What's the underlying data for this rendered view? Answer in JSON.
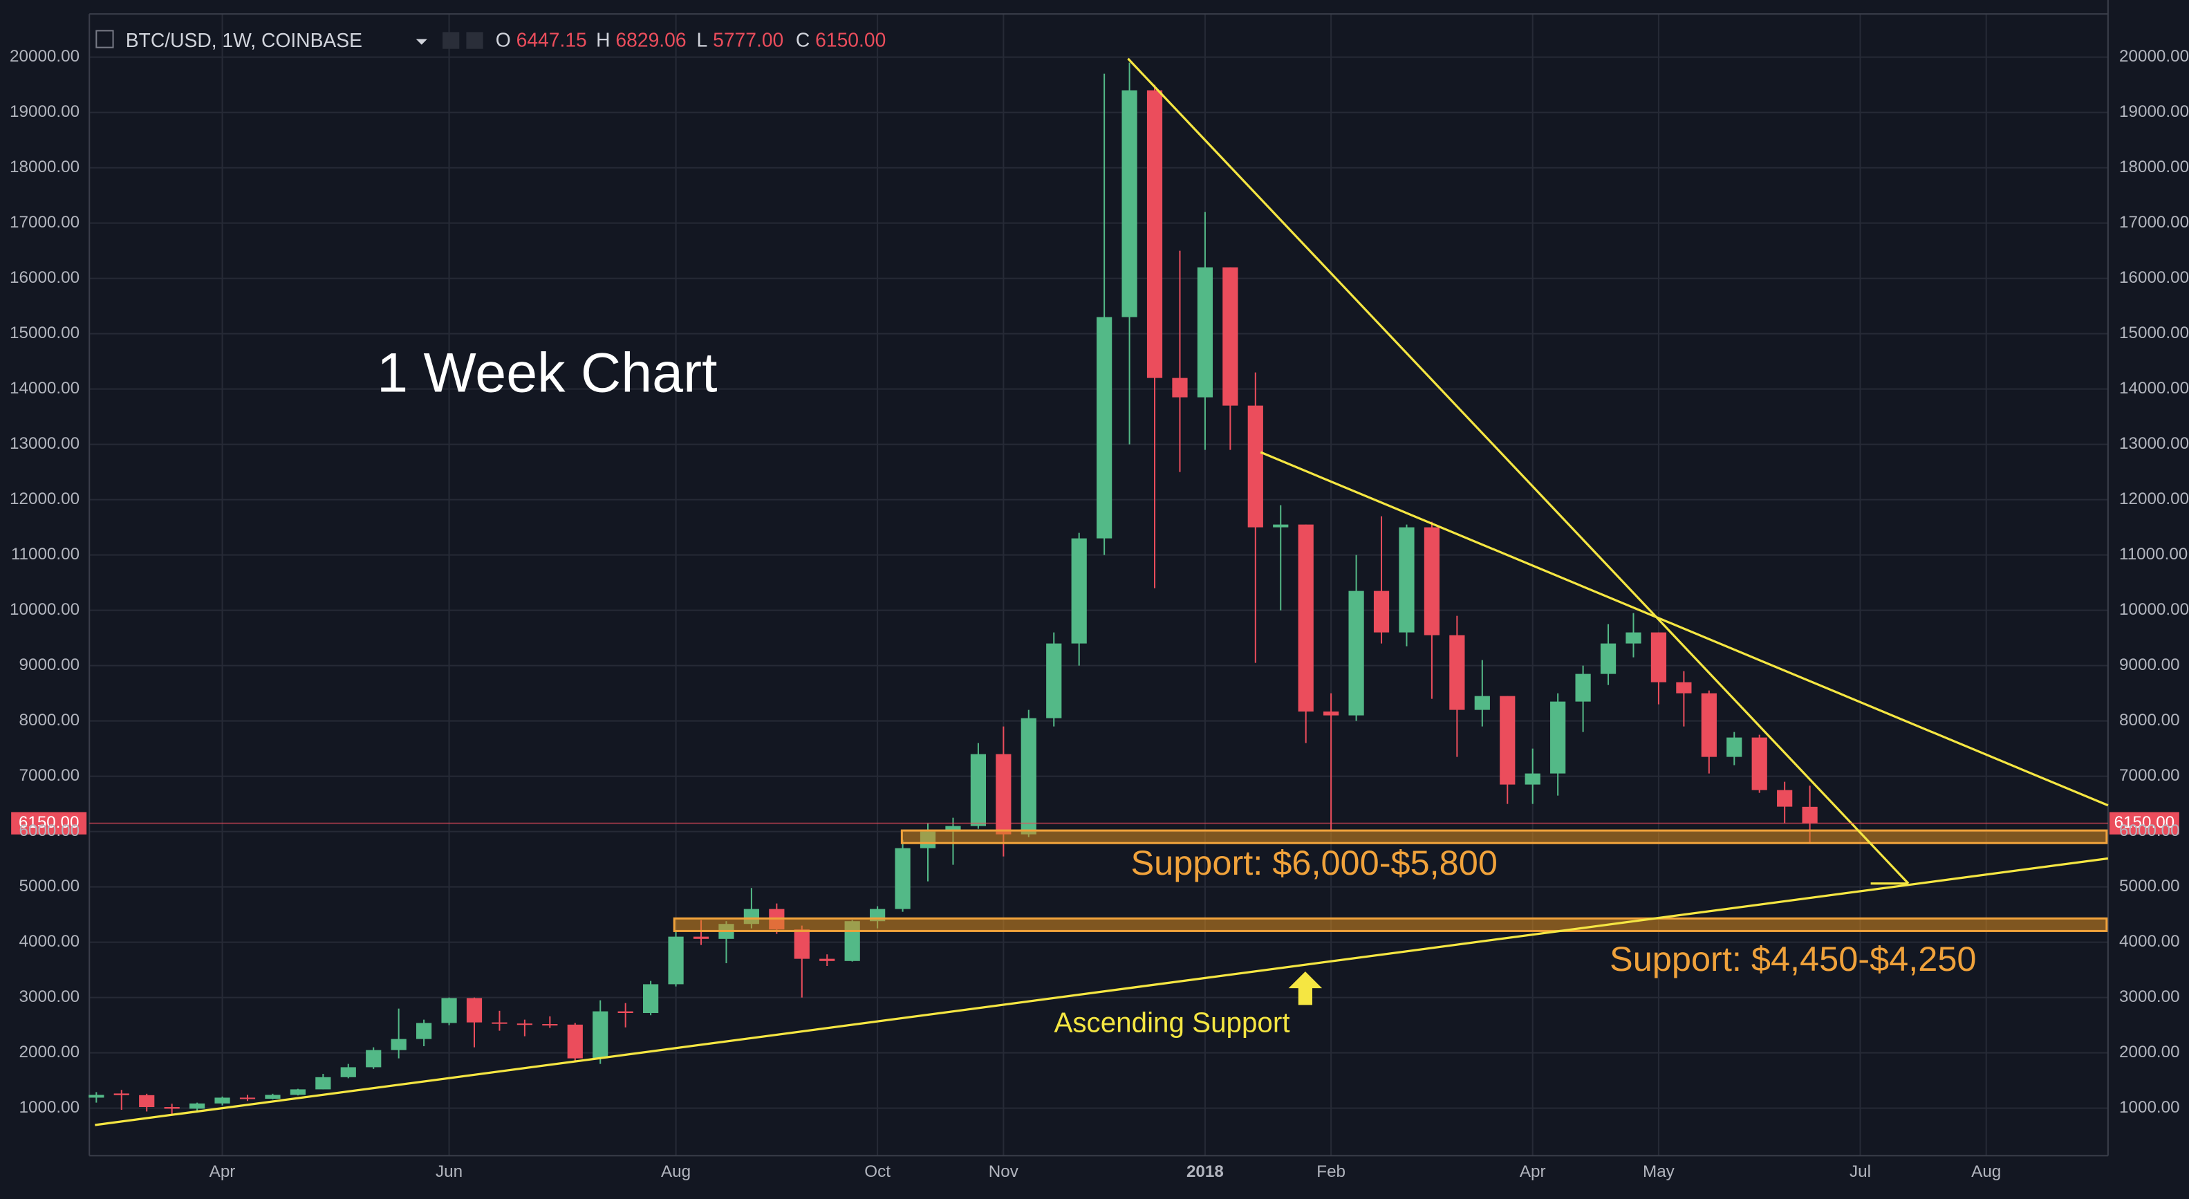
{
  "chart_data": {
    "type": "candlestick",
    "title": "BTC/USD, 1W, COINBASE",
    "ohlc_legend": [
      {
        "key": "O",
        "value": "6447.15"
      },
      {
        "key": "H",
        "value": "6829.06"
      },
      {
        "key": "L",
        "value": "5777.00"
      },
      {
        "key": "C",
        "value": "6150.00"
      }
    ],
    "categories": [
      null,
      null,
      null,
      null,
      null,
      "Apr",
      null,
      null,
      null,
      null,
      null,
      null,
      null,
      null,
      "Jun",
      null,
      null,
      null,
      null,
      null,
      null,
      null,
      null,
      "Aug",
      null,
      null,
      null,
      null,
      null,
      null,
      null,
      "Oct",
      null,
      null,
      null,
      null,
      "Nov",
      null,
      null,
      null,
      null,
      null,
      null,
      null,
      "2018",
      null,
      null,
      null,
      null,
      "Feb",
      null,
      null,
      null,
      null,
      null,
      null,
      null,
      "Apr",
      null,
      null,
      null,
      null,
      "May",
      null,
      null,
      null,
      null,
      null,
      null,
      null,
      "Jul",
      null,
      null,
      null,
      null,
      "Aug"
    ],
    "open": [
      1190,
      1265,
      1235,
      1020,
      990,
      1085,
      1190,
      1170,
      1240,
      1340,
      1560,
      1740,
      2050,
      2250,
      2540,
      2990,
      2550,
      2530,
      2520,
      2510,
      1900,
      2750,
      2720,
      3240,
      4100,
      4060,
      4330,
      4600,
      4230,
      3700,
      3660,
      4380,
      4600,
      5700,
      6000,
      6100,
      7400,
      5950,
      8050,
      9400,
      11300,
      15300,
      19400,
      14200,
      13850,
      16200,
      13700,
      11500,
      11550,
      8170,
      8100,
      10350,
      9600,
      11500,
      9550,
      8200,
      8450,
      6850,
      7050,
      8350,
      8850,
      9400,
      9600,
      8700,
      8500,
      7350,
      7700,
      6750,
      6447.15,
      null,
      null,
      null,
      null,
      null,
      null,
      null
    ],
    "high": [
      1290,
      1330,
      1260,
      1080,
      1100,
      1210,
      1240,
      1260,
      1350,
      1620,
      1800,
      2100,
      2800,
      2600,
      3000,
      3000,
      2760,
      2600,
      2660,
      2540,
      2950,
      2900,
      3300,
      4200,
      4400,
      4380,
      4980,
      4700,
      4300,
      3780,
      4400,
      4650,
      5850,
      6150,
      6250,
      7600,
      7900,
      8200,
      9600,
      11400,
      19700,
      19900,
      19500,
      16500,
      17200,
      16200,
      14300,
      11900,
      11550,
      8500,
      11000,
      11700,
      11550,
      11600,
      9900,
      9100,
      8450,
      7500,
      8500,
      9000,
      9750,
      9950,
      9600,
      8900,
      8550,
      7800,
      7750,
      6900,
      6829.06,
      null,
      null,
      null,
      null,
      null,
      null,
      null
    ],
    "low": [
      1100,
      970,
      940,
      890,
      920,
      1050,
      1130,
      1160,
      1230,
      1340,
      1540,
      1710,
      1900,
      2120,
      2500,
      2100,
      2400,
      2300,
      2450,
      1840,
      1800,
      2460,
      2680,
      3200,
      3950,
      3620,
      4250,
      4150,
      3000,
      3570,
      3650,
      4250,
      4550,
      5100,
      5400,
      6050,
      5550,
      5900,
      7900,
      9000,
      11000,
      13000,
      10400,
      12500,
      12900,
      12900,
      9050,
      10000,
      7600,
      6000,
      8000,
      9400,
      9350,
      8400,
      7350,
      7900,
      6500,
      6500,
      6650,
      7800,
      8650,
      9150,
      8300,
      7900,
      7050,
      7200,
      6700,
      6150,
      5777,
      null,
      null,
      null,
      null,
      null,
      null,
      null
    ],
    "close": [
      1240,
      1235,
      1020,
      990,
      1085,
      1190,
      1170,
      1240,
      1340,
      1560,
      1740,
      2050,
      2250,
      2540,
      2990,
      2550,
      2530,
      2520,
      2510,
      1900,
      2750,
      2720,
      3240,
      4100,
      4060,
      4330,
      4600,
      4230,
      3700,
      3660,
      4380,
      4600,
      5700,
      6000,
      6100,
      7400,
      5950,
      8050,
      9400,
      11300,
      15300,
      19400,
      14200,
      13850,
      16200,
      13700,
      11500,
      11550,
      8170,
      8100,
      10350,
      9600,
      11500,
      9550,
      8200,
      8450,
      6850,
      7050,
      8350,
      8850,
      9400,
      9600,
      8700,
      8500,
      7350,
      7700,
      6750,
      6450,
      6150,
      null,
      null,
      null,
      null,
      null,
      null,
      null
    ],
    "up_color": "#53b987",
    "down_color": "#eb4d5c",
    "last_price": {
      "value": 6150,
      "label": "6150.00"
    },
    "ylim": [
      140,
      20780
    ],
    "yticks": [
      {
        "value": 1000,
        "label": "1000.00"
      },
      {
        "value": 2000,
        "label": "2000.00"
      },
      {
        "value": 3000,
        "label": "3000.00"
      },
      {
        "value": 4000,
        "label": "4000.00"
      },
      {
        "value": 5000,
        "label": "5000.00"
      },
      {
        "value": 6000,
        "label": "6000.00"
      },
      {
        "value": 7000,
        "label": "7000.00"
      },
      {
        "value": 8000,
        "label": "8000.00"
      },
      {
        "value": 9000,
        "label": "9000.00"
      },
      {
        "value": 10000,
        "label": "10000.00"
      },
      {
        "value": 11000,
        "label": "11000.00"
      },
      {
        "value": 12000,
        "label": "12000.00"
      },
      {
        "value": 13000,
        "label": "13000.00"
      },
      {
        "value": 14000,
        "label": "14000.00"
      },
      {
        "value": 15000,
        "label": "15000.00"
      },
      {
        "value": 16000,
        "label": "16000.00"
      },
      {
        "value": 17000,
        "label": "17000.00"
      },
      {
        "value": 18000,
        "label": "18000.00"
      },
      {
        "value": 19000,
        "label": "19000.00"
      },
      {
        "value": 20000,
        "label": "20000.00"
      }
    ],
    "grid": true,
    "annotations": {
      "chart_label": "1 Week Chart",
      "support_upper": "Support: $6,000-$5,800",
      "support_lower": "Support: $4,450-$4,250",
      "ascending": "Ascending Support"
    }
  }
}
